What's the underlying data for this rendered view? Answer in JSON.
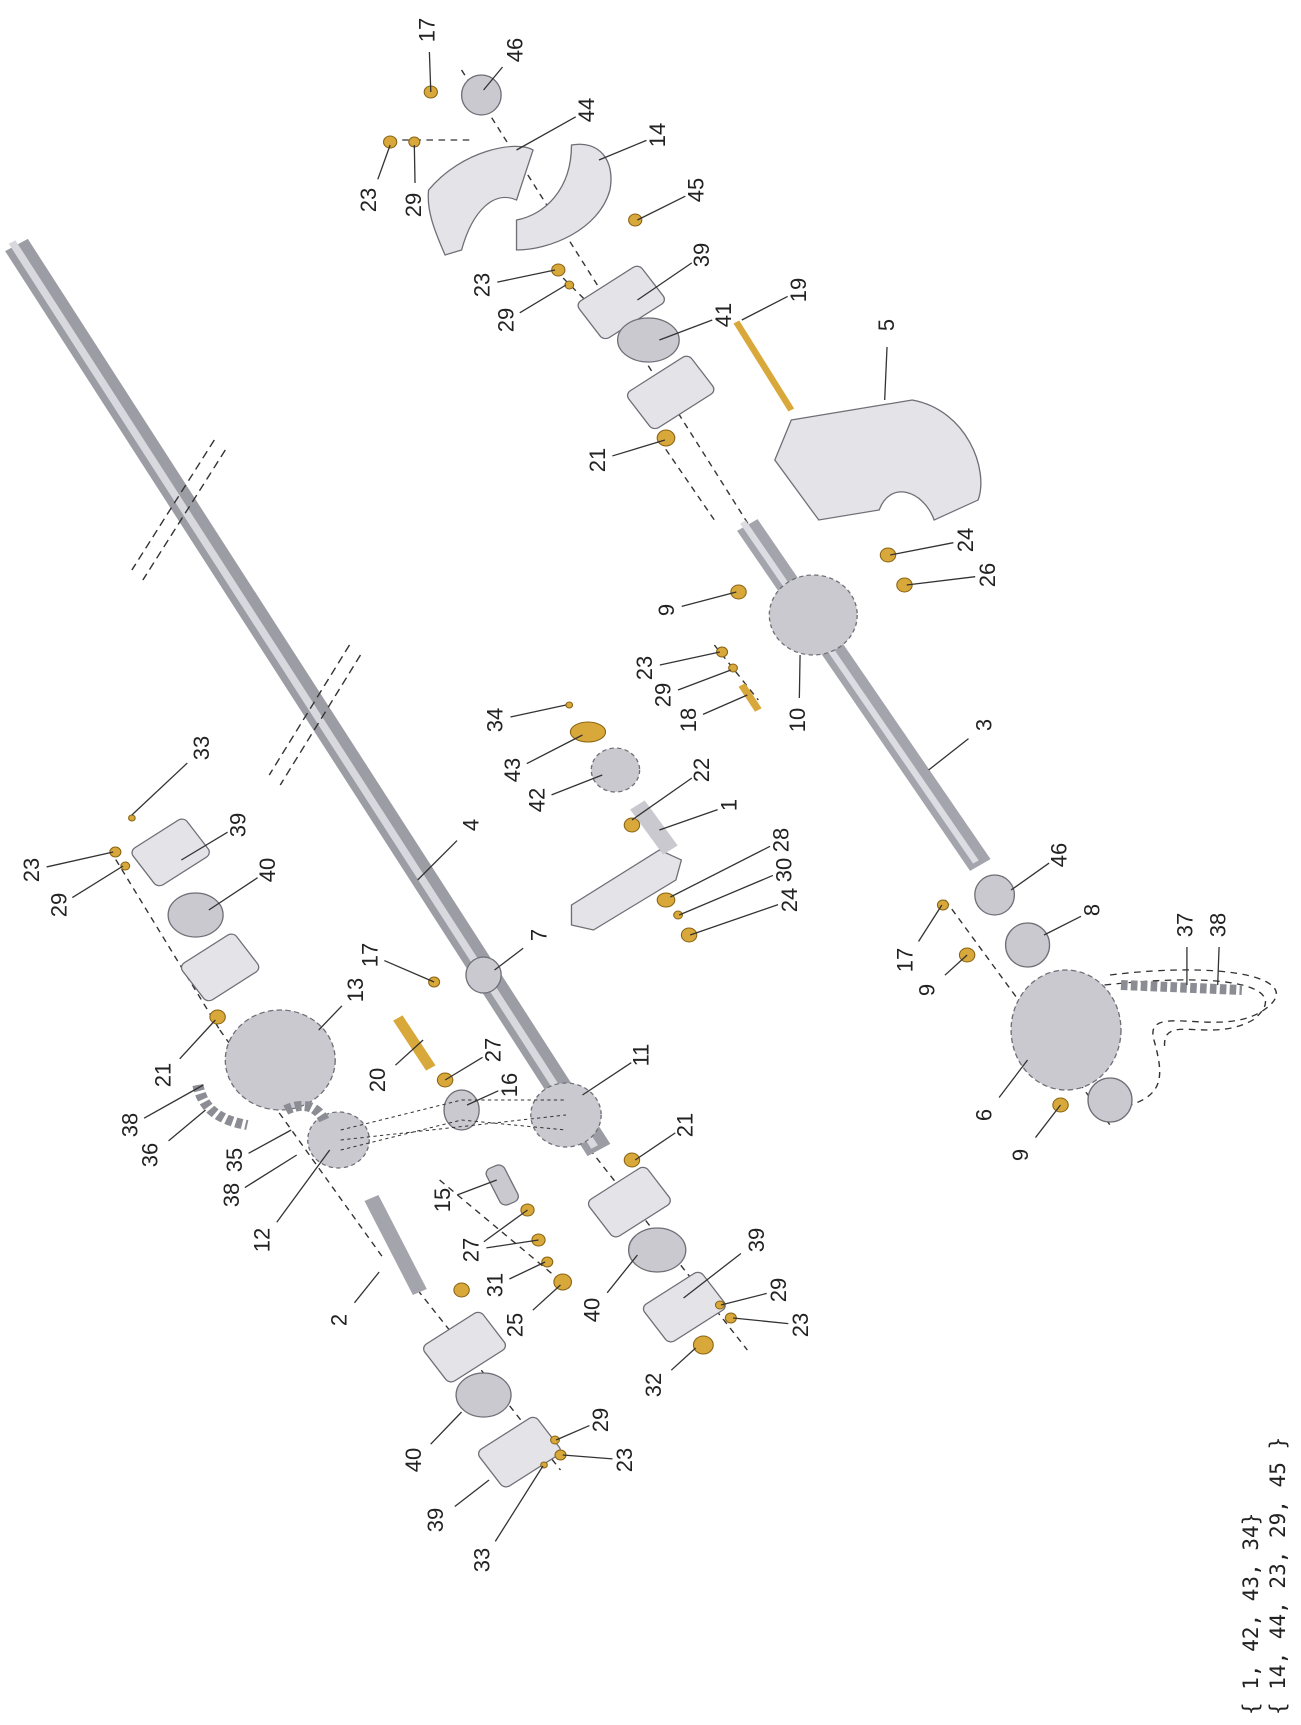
{
  "callouts": [
    "17",
    "46",
    "44",
    "14",
    "23",
    "29",
    "45",
    "39",
    "23",
    "29",
    "41",
    "19",
    "5",
    "21",
    "24",
    "26",
    "9",
    "23",
    "29",
    "18",
    "10",
    "3",
    "34",
    "43",
    "42",
    "22",
    "1",
    "28",
    "30",
    "24",
    "33",
    "23",
    "29",
    "39",
    "40",
    "4",
    "17",
    "7",
    "46",
    "8",
    "17",
    "9",
    "37",
    "38",
    "13",
    "20",
    "27",
    "21",
    "11",
    "16",
    "38",
    "36",
    "35",
    "38",
    "12",
    "21",
    "6",
    "9",
    "15",
    "27",
    "31",
    "25",
    "2",
    "40",
    "39",
    "29",
    "23",
    "32",
    "40",
    "29",
    "23",
    "39",
    "33"
  ],
  "footnotes": [
    "{ 1, 42, 43, 34}",
    "{ 14, 44, 23, 29, 45 }"
  ]
}
